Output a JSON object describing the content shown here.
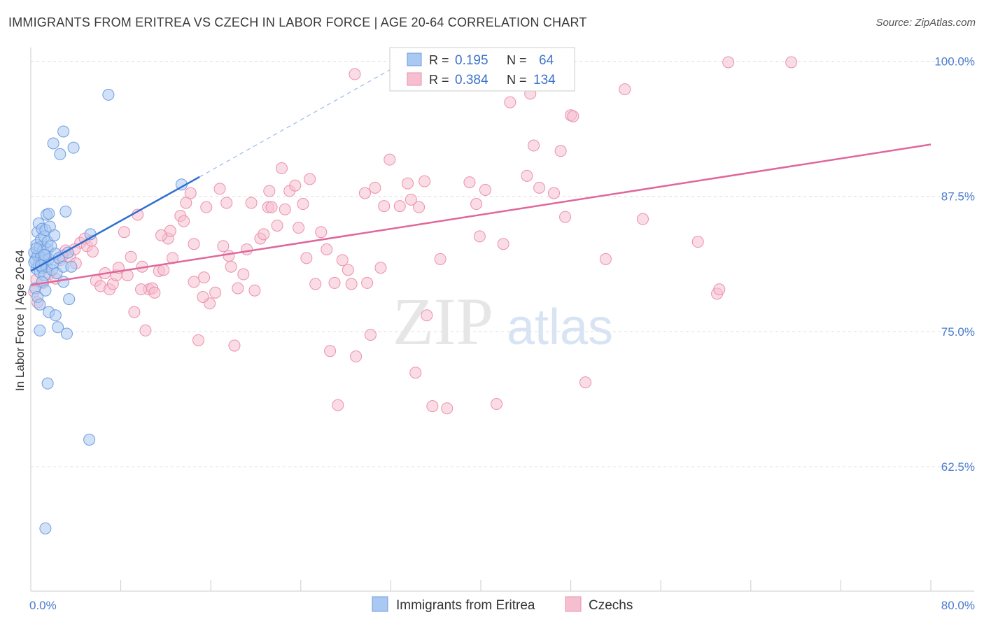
{
  "title": "IMMIGRANTS FROM ERITREA VS CZECH IN LABOR FORCE | AGE 20-64 CORRELATION CHART",
  "source": "Source: ZipAtlas.com",
  "watermark": {
    "zip": "ZIP",
    "atlas": "atlas"
  },
  "colors": {
    "blue_fill": "#a9c8f2",
    "blue_stroke": "#6e9de0",
    "blue_line": "#2e6fd0",
    "pink_fill": "#f6bfd0",
    "pink_stroke": "#ec8fae",
    "pink_line": "#e0679a",
    "grid": "#dddddd",
    "tick_label": "#4a7bd0"
  },
  "legend": {
    "rows": [
      {
        "r_label": "R =",
        "r_value": "0.195",
        "n_label": "N =",
        "n_value": "64"
      },
      {
        "r_label": "R =",
        "r_value": "0.384",
        "n_label": "N =",
        "n_value": "134"
      }
    ]
  },
  "chart_data": {
    "type": "scatter",
    "title": "IMMIGRANTS FROM ERITREA VS CZECH IN LABOR FORCE | AGE 20-64 CORRELATION CHART",
    "xlabel": "",
    "ylabel": "In Labor Force | Age 20-64",
    "xlim": [
      0,
      80
    ],
    "ylim": [
      51,
      101
    ],
    "x_tick_labels": [
      "0.0%",
      "80.0%"
    ],
    "y_ticks": [
      62.5,
      75.0,
      87.5,
      100.0
    ],
    "y_tick_labels": [
      "62.5%",
      "75.0%",
      "87.5%",
      "100.0%"
    ],
    "series": [
      {
        "name": "Immigrants from Eritrea",
        "trend": {
          "x": [
            0,
            15
          ],
          "y": [
            80.6,
            89.3
          ],
          "dashed_to": [
            35,
            101
          ]
        },
        "points": [
          [
            0.3,
            82.3
          ],
          [
            0.4,
            81.6
          ],
          [
            0.5,
            83.0
          ],
          [
            0.5,
            80.8
          ],
          [
            0.6,
            84.2
          ],
          [
            0.6,
            82.0
          ],
          [
            0.7,
            81.2
          ],
          [
            0.7,
            85.0
          ],
          [
            0.8,
            82.8
          ],
          [
            0.8,
            80.5
          ],
          [
            0.9,
            83.5
          ],
          [
            0.9,
            81.9
          ],
          [
            1.0,
            84.5
          ],
          [
            1.0,
            80.9
          ],
          [
            1.1,
            82.5
          ],
          [
            1.1,
            81.5
          ],
          [
            1.2,
            83.8
          ],
          [
            1.2,
            80.2
          ],
          [
            1.3,
            82.0
          ],
          [
            1.3,
            84.4
          ],
          [
            1.4,
            81.0
          ],
          [
            1.5,
            82.6
          ],
          [
            1.5,
            83.3
          ],
          [
            1.6,
            81.7
          ],
          [
            1.7,
            84.7
          ],
          [
            1.8,
            82.9
          ],
          [
            1.9,
            80.7
          ],
          [
            2.0,
            81.3
          ],
          [
            2.1,
            83.9
          ],
          [
            2.2,
            82.2
          ],
          [
            2.3,
            80.4
          ],
          [
            2.5,
            81.8
          ],
          [
            0.4,
            79.0
          ],
          [
            0.6,
            78.2
          ],
          [
            0.8,
            77.5
          ],
          [
            1.0,
            79.6
          ],
          [
            1.3,
            78.8
          ],
          [
            1.6,
            76.8
          ],
          [
            2.2,
            76.5
          ],
          [
            2.4,
            75.4
          ],
          [
            0.8,
            75.1
          ],
          [
            2.9,
            79.6
          ],
          [
            2.9,
            81.0
          ],
          [
            3.2,
            74.8
          ],
          [
            3.4,
            78.0
          ],
          [
            3.1,
            86.1
          ],
          [
            1.4,
            85.8
          ],
          [
            1.6,
            85.9
          ],
          [
            2.0,
            92.4
          ],
          [
            2.6,
            91.4
          ],
          [
            2.9,
            93.5
          ],
          [
            3.8,
            92.0
          ],
          [
            6.9,
            96.9
          ],
          [
            13.4,
            88.6
          ],
          [
            5.3,
            84.0
          ],
          [
            3.6,
            81.0
          ],
          [
            1.5,
            70.2
          ],
          [
            5.2,
            65.0
          ],
          [
            1.3,
            56.8
          ],
          [
            0.3,
            81.4
          ],
          [
            0.5,
            82.7
          ],
          [
            0.9,
            81.1
          ],
          [
            1.2,
            82.1
          ],
          [
            3.3,
            82.3
          ]
        ]
      },
      {
        "name": "Czechs",
        "trend": {
          "x": [
            0,
            80
          ],
          "y": [
            79.3,
            92.3
          ]
        },
        "points": [
          [
            0.3,
            78.7
          ],
          [
            0.5,
            79.8
          ],
          [
            0.6,
            77.7
          ],
          [
            0.8,
            81.6
          ],
          [
            1.0,
            80.9
          ],
          [
            1.1,
            79.5
          ],
          [
            1.3,
            82.1
          ],
          [
            1.6,
            80.3
          ],
          [
            2.2,
            79.9
          ],
          [
            2.6,
            81.6
          ],
          [
            3.1,
            82.5
          ],
          [
            3.5,
            81.9
          ],
          [
            4.0,
            81.3
          ],
          [
            4.4,
            83.2
          ],
          [
            4.8,
            83.6
          ],
          [
            5.0,
            82.9
          ],
          [
            5.5,
            82.4
          ],
          [
            5.8,
            79.7
          ],
          [
            6.2,
            79.2
          ],
          [
            6.6,
            80.4
          ],
          [
            7.0,
            78.9
          ],
          [
            7.3,
            79.4
          ],
          [
            7.6,
            80.2
          ],
          [
            7.8,
            80.9
          ],
          [
            8.3,
            84.2
          ],
          [
            8.6,
            80.2
          ],
          [
            8.9,
            81.9
          ],
          [
            9.2,
            76.8
          ],
          [
            9.5,
            85.8
          ],
          [
            9.9,
            81.0
          ],
          [
            10.2,
            75.1
          ],
          [
            10.5,
            78.9
          ],
          [
            10.8,
            79.0
          ],
          [
            11.0,
            78.6
          ],
          [
            11.4,
            80.6
          ],
          [
            11.8,
            80.7
          ],
          [
            12.2,
            83.6
          ],
          [
            12.4,
            84.3
          ],
          [
            12.6,
            81.8
          ],
          [
            13.3,
            85.7
          ],
          [
            13.6,
            85.2
          ],
          [
            13.8,
            86.9
          ],
          [
            14.2,
            87.8
          ],
          [
            14.5,
            79.6
          ],
          [
            14.9,
            74.2
          ],
          [
            15.4,
            80.0
          ],
          [
            15.6,
            86.5
          ],
          [
            15.9,
            77.6
          ],
          [
            16.4,
            78.6
          ],
          [
            16.8,
            88.2
          ],
          [
            17.1,
            82.9
          ],
          [
            17.4,
            86.9
          ],
          [
            17.8,
            81.0
          ],
          [
            18.1,
            73.7
          ],
          [
            18.4,
            79.0
          ],
          [
            18.9,
            80.3
          ],
          [
            19.2,
            82.6
          ],
          [
            19.6,
            86.9
          ],
          [
            19.9,
            78.8
          ],
          [
            20.4,
            83.6
          ],
          [
            20.7,
            84.0
          ],
          [
            21.1,
            86.5
          ],
          [
            21.4,
            86.5
          ],
          [
            21.9,
            84.8
          ],
          [
            22.3,
            90.1
          ],
          [
            22.6,
            86.3
          ],
          [
            23.0,
            88.0
          ],
          [
            23.5,
            88.5
          ],
          [
            23.8,
            84.6
          ],
          [
            24.2,
            86.8
          ],
          [
            24.5,
            81.8
          ],
          [
            24.8,
            89.1
          ],
          [
            25.3,
            79.4
          ],
          [
            25.8,
            84.2
          ],
          [
            26.6,
            73.2
          ],
          [
            27.0,
            79.5
          ],
          [
            27.3,
            68.2
          ],
          [
            27.7,
            81.6
          ],
          [
            28.2,
            80.7
          ],
          [
            28.5,
            79.4
          ],
          [
            28.9,
            72.7
          ],
          [
            29.7,
            87.8
          ],
          [
            29.9,
            79.5
          ],
          [
            30.2,
            74.7
          ],
          [
            30.6,
            88.3
          ],
          [
            31.1,
            80.9
          ],
          [
            31.4,
            86.6
          ],
          [
            31.9,
            90.9
          ],
          [
            32.8,
            86.6
          ],
          [
            33.5,
            88.7
          ],
          [
            33.8,
            87.2
          ],
          [
            34.2,
            71.2
          ],
          [
            34.5,
            86.5
          ],
          [
            35.2,
            76.5
          ],
          [
            35.7,
            68.1
          ],
          [
            36.4,
            81.7
          ],
          [
            37.0,
            67.9
          ],
          [
            39.0,
            88.8
          ],
          [
            39.6,
            86.8
          ],
          [
            39.9,
            83.8
          ],
          [
            40.4,
            88.1
          ],
          [
            41.4,
            68.3
          ],
          [
            42.0,
            83.1
          ],
          [
            42.6,
            96.2
          ],
          [
            44.1,
            89.4
          ],
          [
            44.7,
            92.2
          ],
          [
            45.2,
            88.3
          ],
          [
            46.5,
            87.8
          ],
          [
            47.1,
            91.7
          ],
          [
            47.5,
            85.6
          ],
          [
            48.0,
            95.0
          ],
          [
            49.3,
            70.3
          ],
          [
            51.1,
            81.7
          ],
          [
            52.8,
            97.4
          ],
          [
            54.4,
            85.4
          ],
          [
            59.3,
            83.3
          ],
          [
            61.0,
            78.5
          ],
          [
            61.2,
            78.9
          ],
          [
            62.0,
            99.9
          ],
          [
            67.6,
            99.9
          ],
          [
            15.3,
            78.2
          ],
          [
            21.2,
            88.0
          ],
          [
            14.5,
            83.1
          ],
          [
            3.9,
            82.6
          ],
          [
            5.4,
            83.4
          ],
          [
            2.8,
            82.0
          ],
          [
            9.8,
            78.9
          ],
          [
            11.6,
            83.9
          ],
          [
            17.6,
            82.0
          ],
          [
            26.3,
            82.6
          ],
          [
            35.0,
            88.9
          ],
          [
            28.8,
            98.8
          ],
          [
            44.4,
            97.0
          ],
          [
            48.2,
            94.9
          ]
        ]
      }
    ]
  },
  "bottom_legend": {
    "items": [
      {
        "label": "Immigrants from Eritrea"
      },
      {
        "label": "Czechs"
      }
    ]
  }
}
